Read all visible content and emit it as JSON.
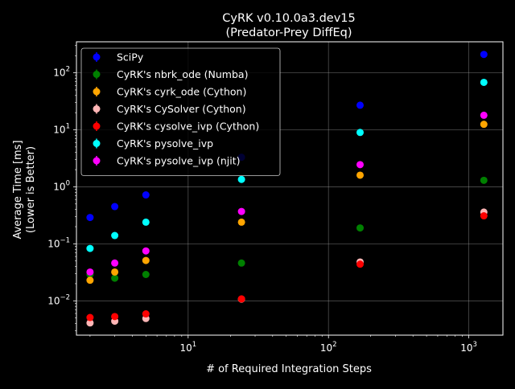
{
  "chart_data": {
    "type": "scatter",
    "title": "CyRK v0.10.0a3.dev15",
    "subtitle": "(Predator-Prey DiffEq)",
    "xlabel": "# of Required Integration Steps",
    "ylabel": "Average Time [ms]",
    "ylabel2": "(Lower is Better)",
    "xscale": "log",
    "yscale": "log",
    "xlim": [
      1.6,
      1750
    ],
    "ylim": [
      0.0025,
      350
    ],
    "xticks": [
      {
        "value": 10,
        "base": "10",
        "exp": "1"
      },
      {
        "value": 100,
        "base": "10",
        "exp": "2"
      },
      {
        "value": 1000,
        "base": "10",
        "exp": "3"
      }
    ],
    "yticks": [
      {
        "value": 0.01,
        "base": "10",
        "exp": "−2"
      },
      {
        "value": 0.1,
        "base": "10",
        "exp": "−1"
      },
      {
        "value": 1,
        "base": "10",
        "exp": "0"
      },
      {
        "value": 10,
        "base": "10",
        "exp": "1"
      },
      {
        "value": 100,
        "base": "10",
        "exp": "2"
      }
    ],
    "grid": true,
    "legend_position": "top-left",
    "x": [
      2,
      3,
      5,
      24,
      168,
      1280
    ],
    "series": [
      {
        "name": "SciPy",
        "color": "#0000ff",
        "values": [
          0.29,
          0.45,
          0.72,
          3.3,
          27.0,
          210.0
        ]
      },
      {
        "name": "CyRK's nbrk_ode (Numba)",
        "color": "#008000",
        "values": [
          0.029,
          0.025,
          0.029,
          0.046,
          0.19,
          1.3
        ]
      },
      {
        "name": "CyRK's cyrk_ode (Cython)",
        "color": "#ffa500",
        "values": [
          0.023,
          0.032,
          0.051,
          0.24,
          1.6,
          12.5
        ]
      },
      {
        "name": "CyRK's CySolver (Cython)",
        "color": "#ffb6b6",
        "values": [
          0.0041,
          0.0044,
          0.0049,
          0.0107,
          0.048,
          0.36
        ]
      },
      {
        "name": "CyRK's cysolve_ivp (Cython)",
        "color": "#ff0000",
        "values": [
          0.0051,
          0.0053,
          0.0059,
          0.0108,
          0.044,
          0.31
        ]
      },
      {
        "name": "CyRK's pysolve_ivp",
        "color": "#00ffff",
        "values": [
          0.083,
          0.14,
          0.24,
          1.35,
          9.0,
          68.0
        ]
      },
      {
        "name": "CyRK's pysolve_ivp (njit)",
        "color": "#ff00ff",
        "values": [
          0.032,
          0.046,
          0.075,
          0.37,
          2.45,
          18.0
        ]
      }
    ]
  }
}
